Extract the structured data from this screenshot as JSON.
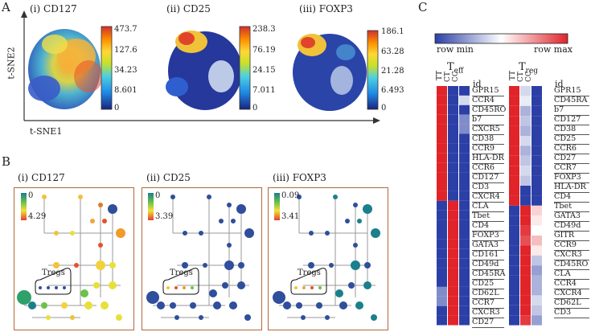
{
  "figure": {
    "panel_a": {
      "letter": "A",
      "plots": [
        {
          "title": "(i) CD127",
          "colorbar": [
            "473.7",
            "127.6",
            "34.23",
            "8.601",
            "0"
          ]
        },
        {
          "title": "(ii) CD25",
          "colorbar": [
            "238.3",
            "76.19",
            "24.15",
            "7.011",
            "0"
          ]
        },
        {
          "title": "(iii) FOXP3",
          "colorbar": [
            "186.1",
            "63.28",
            "21.28",
            "6.493",
            "0"
          ]
        }
      ],
      "y_axis": "t-SNE2",
      "x_axis": "t-SNE1"
    },
    "panel_b": {
      "letter": "B",
      "trees": [
        {
          "title": "(i) CD127",
          "max": "0",
          "min": "4.29",
          "label": "Tregs"
        },
        {
          "title": "(ii) CD25",
          "max": "0",
          "min": "3.39",
          "label": "Tregs"
        },
        {
          "title": "(iii) FOXP3",
          "max": "0.09",
          "min": "3.41",
          "label": "Tregs"
        }
      ]
    },
    "panel_c": {
      "letter": "C",
      "legend_min": "row min",
      "legend_max": "row max",
      "teff": {
        "title": "T",
        "sub": "eff",
        "cols": [
          "TT",
          "CT",
          "CC"
        ],
        "id_label": "id",
        "genes": [
          "GPR15",
          "CCR4",
          "CD45RO",
          "b7",
          "CXCR5",
          "CD38",
          "CCR9",
          "HLA-DR",
          "CCR6",
          "CD127",
          "CD3",
          "CXCR4",
          "CLA",
          "Tbet",
          "CD4",
          "FOXP3",
          "GATA3",
          "CD161",
          "CD49d",
          "CD45RA",
          "CD25",
          "CD62L",
          "CCR7",
          "CXCR3",
          "CD27"
        ],
        "matrix": [
          [
            1,
            -1,
            -1
          ],
          [
            1,
            -1,
            -0.2
          ],
          [
            1,
            -1,
            -1
          ],
          [
            1,
            -1,
            -0.6
          ],
          [
            1,
            -1,
            -0.6
          ],
          [
            1,
            -1,
            -1
          ],
          [
            1,
            -1,
            -1
          ],
          [
            1,
            -1,
            -1
          ],
          [
            1,
            -1,
            -1
          ],
          [
            1,
            -1,
            -1
          ],
          [
            1,
            -1,
            -1
          ],
          [
            1,
            -1,
            -1
          ],
          [
            -1,
            1,
            -1
          ],
          [
            -1,
            1,
            -1
          ],
          [
            -1,
            1,
            -1
          ],
          [
            -1,
            1,
            -1
          ],
          [
            -1,
            1,
            -1
          ],
          [
            -1,
            1,
            -1
          ],
          [
            -1,
            1,
            -1
          ],
          [
            -1,
            1,
            -1
          ],
          [
            -1,
            1,
            -1
          ],
          [
            -0.6,
            1,
            -1
          ],
          [
            -0.6,
            1,
            -1
          ],
          [
            -1,
            1,
            -1
          ],
          [
            -1,
            1,
            -1
          ]
        ]
      },
      "treg": {
        "title": "T",
        "sub": "reg",
        "cols": [
          "TT",
          "CT",
          "CC"
        ],
        "id_label": "id",
        "genes": [
          "GPR15",
          "CD45RA",
          "b7",
          "CD127",
          "CD38",
          "CD25",
          "CCR6",
          "CD27",
          "CCR7",
          "FOXP3",
          "HLA-DR",
          "CD4",
          "Tbet",
          "GATA3",
          "CD49d",
          "GITR",
          "CCR9",
          "CXCR3",
          "CD45RO",
          "CLA",
          "CCR4",
          "CXCR4",
          "CD62L",
          "CD3"
        ],
        "matrix": [
          [
            1,
            -0.2,
            -1
          ],
          [
            1,
            -0.1,
            -1
          ],
          [
            1,
            -0.4,
            -1
          ],
          [
            1,
            -0.3,
            -1
          ],
          [
            1,
            -0.4,
            -1
          ],
          [
            1,
            -0.2,
            -1
          ],
          [
            1,
            -0.4,
            -1
          ],
          [
            1,
            -0.3,
            -1
          ],
          [
            1,
            -0.2,
            -1
          ],
          [
            1,
            -0.3,
            -1
          ],
          [
            1,
            -1,
            -1
          ],
          [
            1,
            -1,
            -1
          ],
          [
            -1,
            1,
            0.2
          ],
          [
            -1,
            1,
            0.1
          ],
          [
            -1,
            0.9,
            0
          ],
          [
            -1,
            0.8,
            0.3
          ],
          [
            -1,
            1,
            0.1
          ],
          [
            -1,
            1,
            -0.3
          ],
          [
            -1,
            1,
            -0.5
          ],
          [
            -1,
            1,
            -0.4
          ],
          [
            -1,
            1,
            -0.4
          ],
          [
            -1,
            1,
            -0.2
          ],
          [
            -1,
            1,
            -0.3
          ],
          [
            -1,
            0.9,
            -0.5
          ]
        ]
      }
    }
  }
}
